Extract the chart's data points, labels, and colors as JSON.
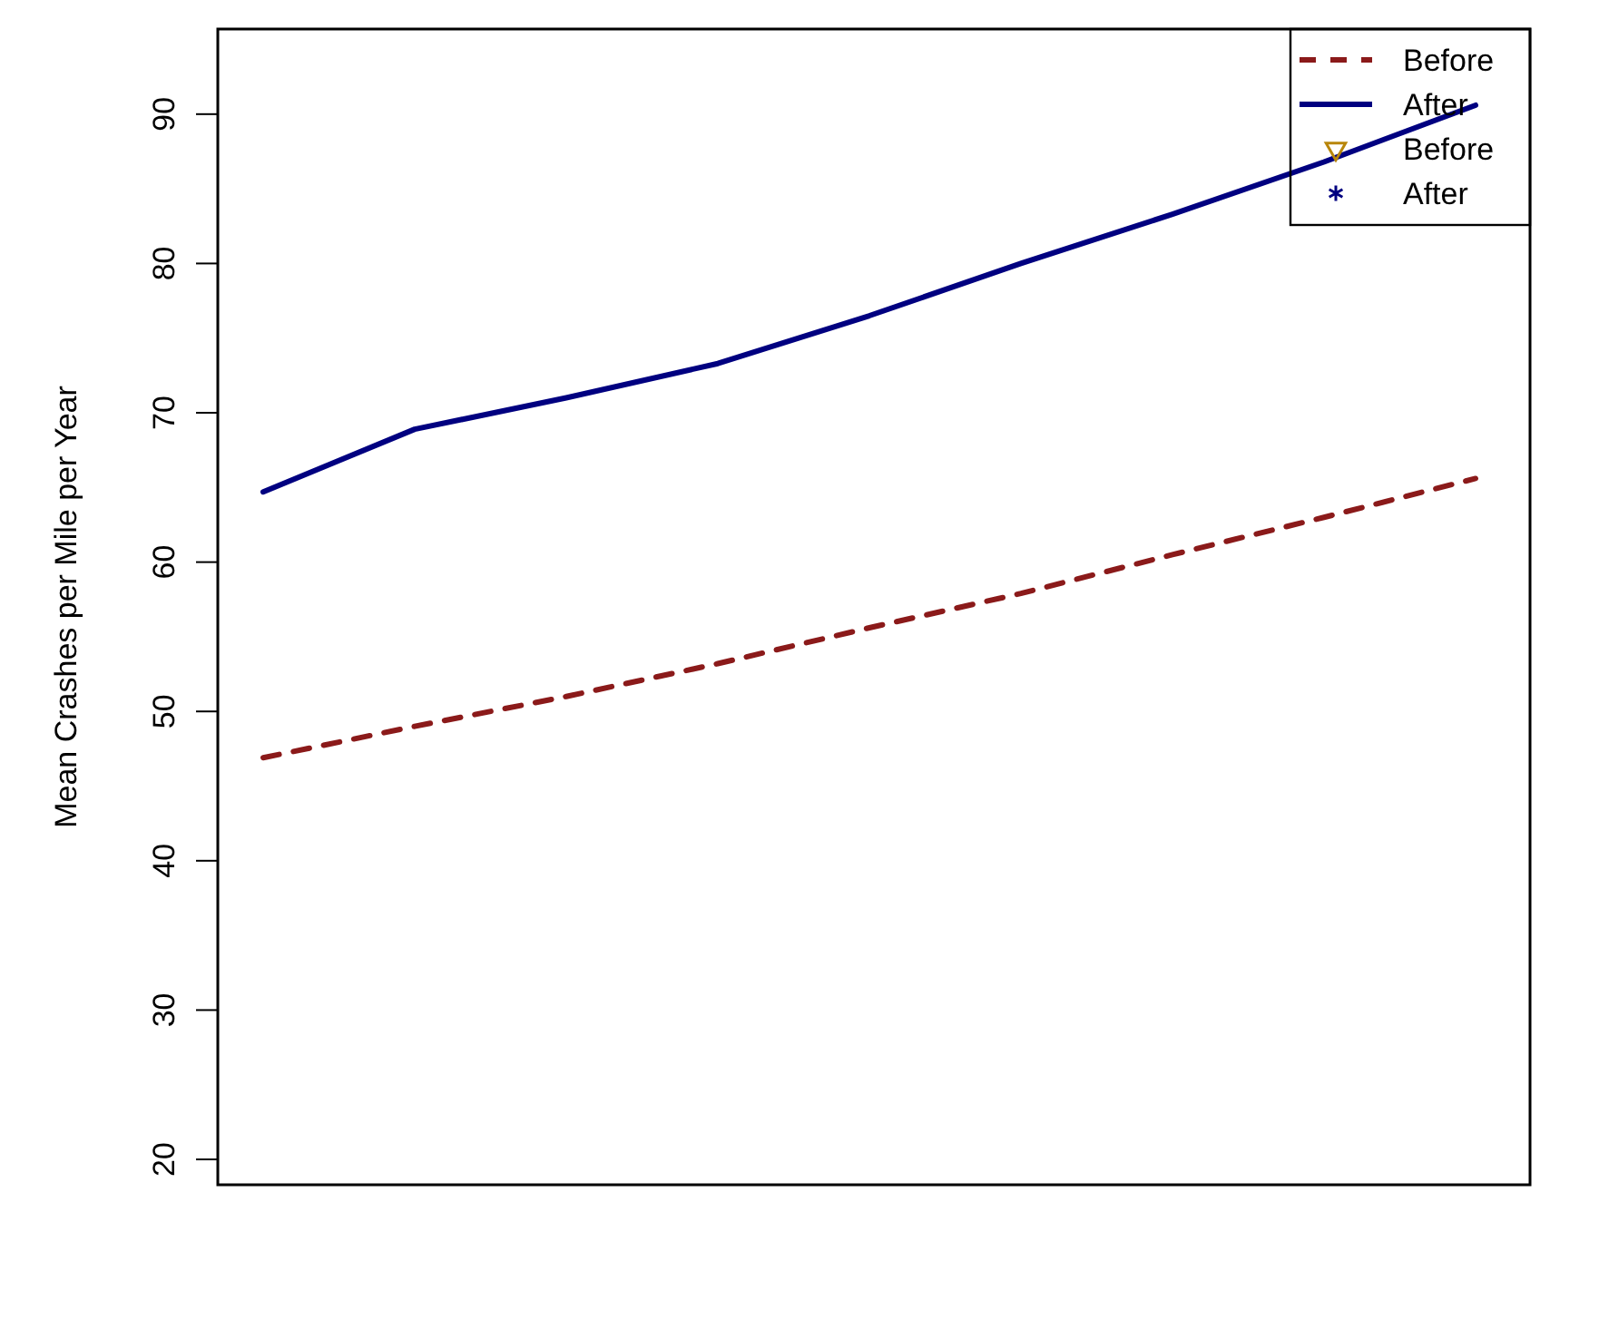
{
  "chart_data": {
    "type": "line",
    "ylabel": "Mean Crashes per Mile per Year",
    "ylim": [
      18.3,
      95.7
    ],
    "categories": [
      null,
      null,
      null,
      null,
      null,
      null,
      null,
      null,
      null
    ],
    "yticks": [
      20,
      30,
      40,
      50,
      60,
      70,
      80,
      90
    ],
    "tick_labels": "y",
    "grid": false,
    "legend": "top right",
    "series": [
      {
        "name": "Before",
        "line_style": "dashed",
        "color": "#8b1a1a",
        "values": [
          46.9,
          49.0,
          51.0,
          53.2,
          55.6,
          57.9,
          60.5,
          63.0,
          65.6
        ]
      },
      {
        "name": "After",
        "line_style": "solid",
        "color": "#000080",
        "values": [
          64.7,
          68.9,
          71.0,
          73.3,
          76.5,
          80.0,
          83.3,
          86.8,
          90.6
        ]
      },
      {
        "name": "Before",
        "type": "scatter",
        "marker": "triangle",
        "color": "#b8860b",
        "values": [
          null,
          null,
          null,
          null,
          null,
          null,
          null,
          null,
          null
        ]
      },
      {
        "name": "After",
        "type": "scatter",
        "marker": "star",
        "color": "#000080",
        "values": [
          null,
          null,
          null,
          null,
          null,
          null,
          null,
          null,
          null
        ]
      }
    ]
  }
}
